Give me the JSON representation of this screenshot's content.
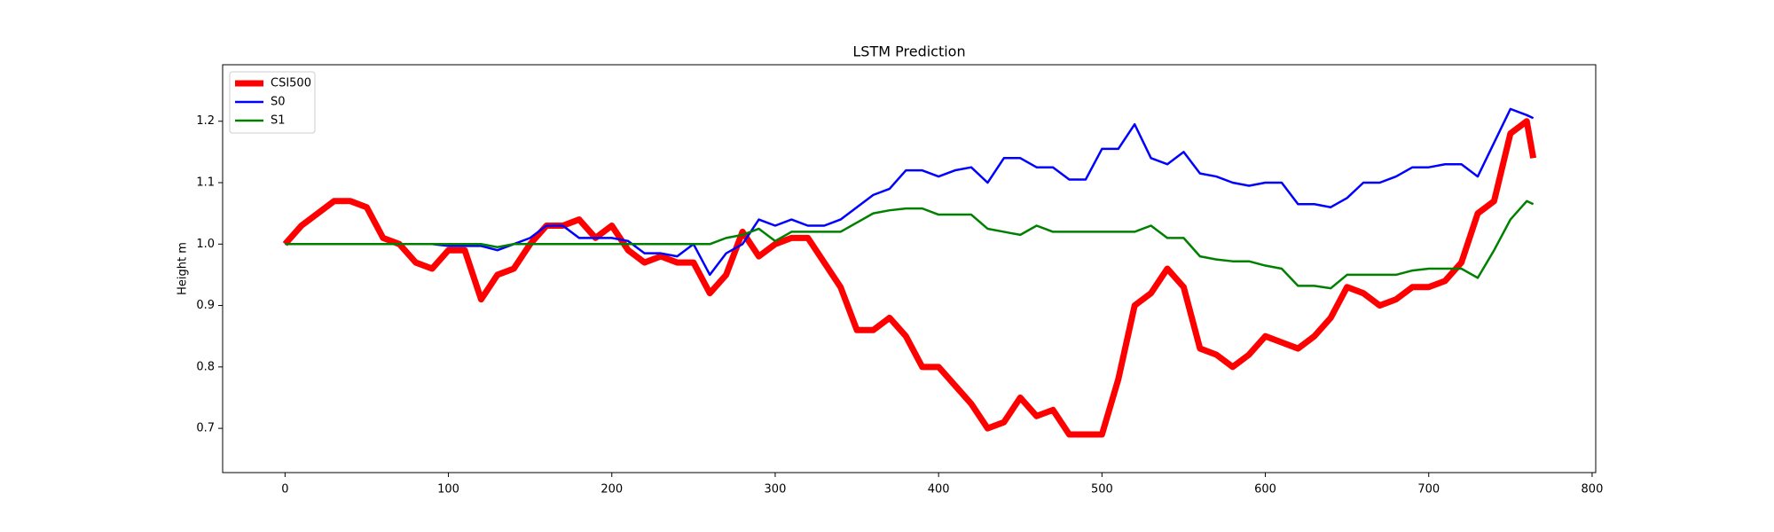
{
  "chart_data": {
    "type": "line",
    "title": "LSTM Prediction",
    "y_label": "Height m",
    "legend": "upper left",
    "grid": false,
    "xlim": [
      -38.2,
      802.2
    ],
    "ylim": [
      0.628,
      1.292
    ],
    "xticks": [
      0,
      100,
      200,
      300,
      400,
      500,
      600,
      700,
      800
    ],
    "yticks": [
      0.7,
      0.8,
      0.9,
      {
        "value": 1.0,
        "label": "1.0"
      },
      1.1,
      1.2
    ],
    "x": [
      0,
      10,
      20,
      30,
      40,
      50,
      60,
      70,
      80,
      90,
      100,
      110,
      120,
      130,
      140,
      150,
      160,
      170,
      180,
      190,
      200,
      210,
      220,
      230,
      240,
      250,
      260,
      270,
      280,
      290,
      300,
      310,
      320,
      330,
      340,
      350,
      360,
      370,
      380,
      390,
      400,
      410,
      420,
      430,
      440,
      450,
      460,
      470,
      480,
      490,
      500,
      510,
      520,
      530,
      540,
      550,
      560,
      570,
      580,
      590,
      600,
      610,
      620,
      630,
      640,
      650,
      660,
      670,
      680,
      690,
      700,
      710,
      720,
      730,
      740,
      750,
      760,
      764
    ],
    "series": [
      {
        "name": "CSI500",
        "color": "#ff0000",
        "linewidth": 7,
        "values": [
          1.0,
          1.03,
          1.05,
          1.07,
          1.07,
          1.06,
          1.01,
          1.0,
          0.97,
          0.96,
          0.99,
          0.99,
          0.91,
          0.95,
          0.96,
          1.0,
          1.03,
          1.03,
          1.04,
          1.01,
          1.03,
          0.99,
          0.97,
          0.98,
          0.97,
          0.97,
          0.92,
          0.95,
          1.02,
          0.98,
          1.0,
          1.01,
          1.01,
          0.97,
          0.93,
          0.86,
          0.86,
          0.88,
          0.85,
          0.8,
          0.8,
          0.77,
          0.74,
          0.7,
          0.71,
          0.75,
          0.72,
          0.73,
          0.69,
          0.69,
          0.69,
          0.78,
          0.9,
          0.92,
          0.96,
          0.93,
          0.83,
          0.82,
          0.8,
          0.82,
          0.85,
          0.84,
          0.83,
          0.85,
          0.88,
          0.93,
          0.92,
          0.9,
          0.91,
          0.93,
          0.93,
          0.94,
          0.97,
          1.05,
          1.07,
          1.18,
          1.2,
          1.14
        ]
      },
      {
        "name": "S0",
        "color": "#0000ff",
        "linewidth": 2.5,
        "values": [
          1.0,
          1.0,
          1.0,
          1.0,
          1.0,
          1.0,
          1.0,
          1.0,
          1.0,
          1.0,
          0.997,
          0.997,
          0.997,
          0.99,
          1.0,
          1.01,
          1.03,
          1.03,
          1.01,
          1.01,
          1.01,
          1.005,
          0.985,
          0.985,
          0.98,
          1.0,
          0.95,
          0.985,
          1.0,
          1.04,
          1.03,
          1.04,
          1.03,
          1.03,
          1.04,
          1.06,
          1.08,
          1.09,
          1.12,
          1.12,
          1.11,
          1.12,
          1.125,
          1.1,
          1.14,
          1.14,
          1.125,
          1.125,
          1.105,
          1.105,
          1.155,
          1.155,
          1.195,
          1.14,
          1.13,
          1.15,
          1.115,
          1.11,
          1.1,
          1.095,
          1.1,
          1.1,
          1.065,
          1.065,
          1.06,
          1.075,
          1.1,
          1.1,
          1.11,
          1.125,
          1.125,
          1.13,
          1.13,
          1.11,
          1.165,
          1.22,
          1.21,
          1.205
        ]
      },
      {
        "name": "S1",
        "color": "#008000",
        "linewidth": 2.5,
        "values": [
          1.0,
          1.0,
          1.0,
          1.0,
          1.0,
          1.0,
          1.0,
          1.0,
          1.0,
          1.0,
          1.0,
          1.0,
          1.0,
          0.995,
          1.0,
          1.0,
          1.0,
          1.0,
          1.0,
          1.0,
          1.0,
          1.0,
          1.0,
          1.0,
          1.0,
          1.0,
          1.0,
          1.01,
          1.015,
          1.025,
          1.005,
          1.02,
          1.02,
          1.02,
          1.02,
          1.035,
          1.05,
          1.055,
          1.058,
          1.058,
          1.048,
          1.048,
          1.048,
          1.025,
          1.02,
          1.015,
          1.03,
          1.02,
          1.02,
          1.02,
          1.02,
          1.02,
          1.02,
          1.03,
          1.01,
          1.01,
          0.98,
          0.975,
          0.972,
          0.972,
          0.965,
          0.96,
          0.932,
          0.932,
          0.928,
          0.95,
          0.95,
          0.95,
          0.95,
          0.957,
          0.96,
          0.96,
          0.96,
          0.945,
          0.99,
          1.04,
          1.07,
          1.065
        ]
      }
    ]
  }
}
